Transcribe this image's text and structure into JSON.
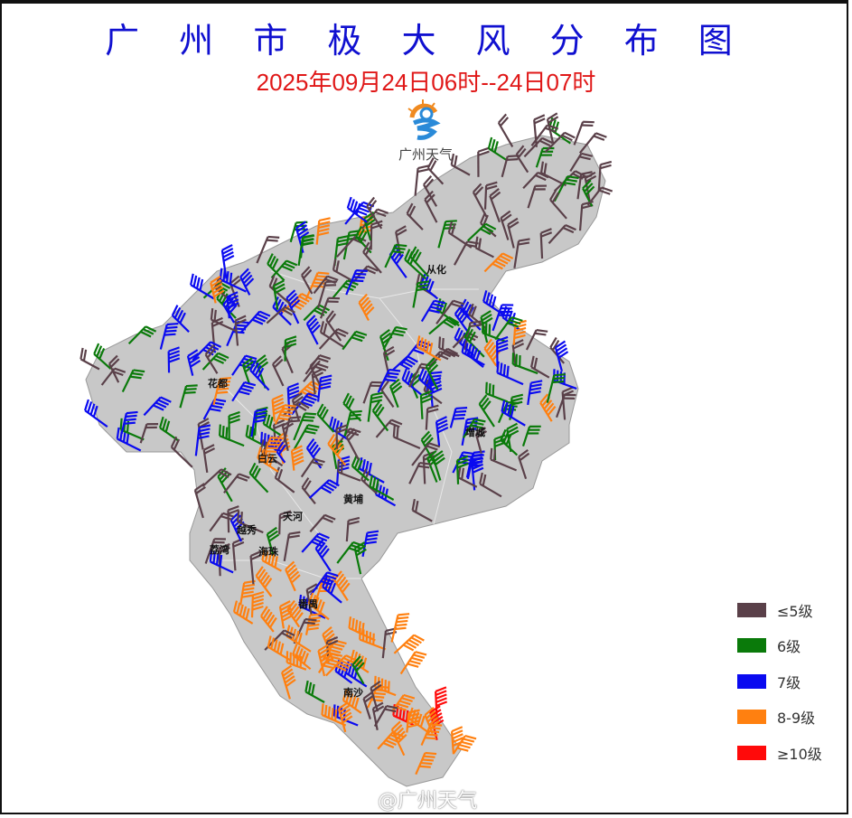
{
  "title": "广 州 市 极 大 风 分 布 图",
  "subtitle": "2025年09月24日06时--24日07时",
  "logo_text": "广州天气",
  "watermark": "@广州天气",
  "districts": [
    {
      "name": "从化"
    },
    {
      "name": "花都"
    },
    {
      "name": "白云"
    },
    {
      "name": "增城"
    },
    {
      "name": "黄埔"
    },
    {
      "name": "天河"
    },
    {
      "name": "越秀"
    },
    {
      "name": "荔湾"
    },
    {
      "name": "海珠"
    },
    {
      "name": "番禺"
    },
    {
      "name": "南沙"
    }
  ],
  "legend": [
    {
      "label": "≤5级",
      "color": "#5a4049"
    },
    {
      "label": "6级",
      "color": "#0a7a0a"
    },
    {
      "label": "7级",
      "color": "#0a0af0"
    },
    {
      "label": "8-9级",
      "color": "#ff8010"
    },
    {
      "label": "≥10级",
      "color": "#ff0a0a"
    }
  ],
  "map_fill": "#c8c8c8"
}
